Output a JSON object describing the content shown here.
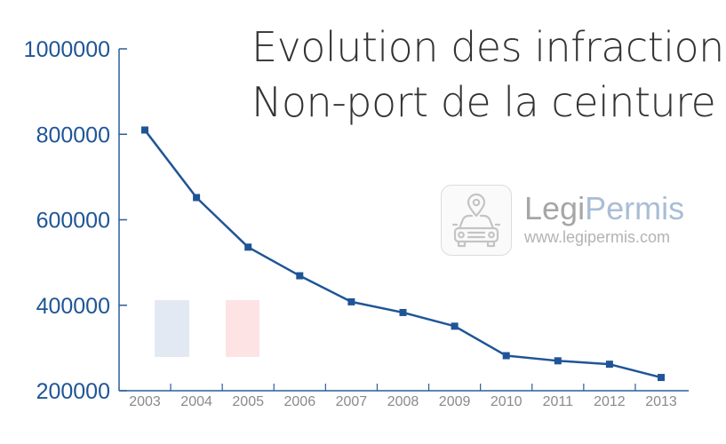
{
  "colors": {
    "axis": "#2a5d9a",
    "line": "#1f5596",
    "tick_label_y": "#1f5596",
    "tick_label_x": "#8a8a8a",
    "flag_blue": "#e3e9f2",
    "flag_red": "#fde3e3"
  },
  "watermark": {
    "brand_part1": "Legi",
    "brand_part2": "Permis",
    "url": "www.legipermis.com",
    "icon": "car-pin-icon"
  },
  "chart_data": {
    "type": "line",
    "title": "Evolution des infractions",
    "subtitle": "Non-port de la ceinture",
    "xlabel": "",
    "ylabel": "",
    "x": [
      "2003",
      "2004",
      "2005",
      "2006",
      "2007",
      "2008",
      "2009",
      "2010",
      "2011",
      "2012",
      "2013"
    ],
    "series": [
      {
        "values": [
          810000,
          652000,
          536000,
          469000,
          408000,
          383000,
          351000,
          282000,
          270000,
          262000,
          231000
        ]
      }
    ],
    "ylim": [
      200000,
      1000000
    ],
    "yticks": [
      "200000",
      "400000",
      "600000",
      "800000",
      "1000000"
    ],
    "grid": false,
    "legend": "none"
  }
}
